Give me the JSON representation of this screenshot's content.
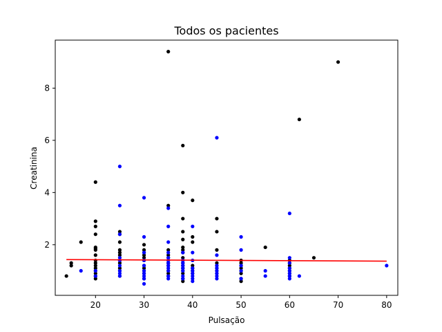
{
  "chart_data": {
    "type": "scatter",
    "title": "Todos os pacientes",
    "xlabel": "Pulsação",
    "ylabel": "Creatinina",
    "xlim": [
      11.7,
      82.3
    ],
    "ylim": [
      0.06,
      9.84
    ],
    "xticks": [
      20,
      30,
      40,
      50,
      60,
      70,
      80
    ],
    "yticks": [
      2,
      4,
      6,
      8
    ],
    "grid": false,
    "legend": "none",
    "series": [
      {
        "color": "#000000",
        "points": [
          [
            14,
            0.8
          ],
          [
            15,
            1.2
          ],
          [
            15,
            1.3
          ],
          [
            17,
            2.1
          ],
          [
            20,
            0.7
          ],
          [
            20,
            0.8
          ],
          [
            20,
            0.9
          ],
          [
            20,
            1.0
          ],
          [
            20,
            1.1
          ],
          [
            20,
            1.2
          ],
          [
            20,
            1.3
          ],
          [
            20,
            1.4
          ],
          [
            20,
            1.6
          ],
          [
            20,
            1.8
          ],
          [
            20,
            1.85
          ],
          [
            20,
            1.9
          ],
          [
            20,
            2.4
          ],
          [
            20,
            2.7
          ],
          [
            20,
            2.9
          ],
          [
            20,
            4.4
          ],
          [
            25,
            0.8
          ],
          [
            25,
            1.0
          ],
          [
            25,
            1.1
          ],
          [
            25,
            1.3
          ],
          [
            25,
            1.4
          ],
          [
            25,
            1.6
          ],
          [
            25,
            1.7
          ],
          [
            25,
            1.8
          ],
          [
            25,
            2.1
          ],
          [
            25,
            2.4
          ],
          [
            25,
            2.5
          ],
          [
            30,
            0.7
          ],
          [
            30,
            0.9
          ],
          [
            30,
            1.0
          ],
          [
            30,
            1.1
          ],
          [
            30,
            1.2
          ],
          [
            30,
            1.4
          ],
          [
            30,
            1.5
          ],
          [
            30,
            1.6
          ],
          [
            30,
            1.7
          ],
          [
            30,
            1.8
          ],
          [
            30,
            2.0
          ],
          [
            35,
            0.8
          ],
          [
            35,
            0.9
          ],
          [
            35,
            1.0
          ],
          [
            35,
            1.2
          ],
          [
            35,
            1.3
          ],
          [
            35,
            1.4
          ],
          [
            35,
            1.5
          ],
          [
            35,
            1.6
          ],
          [
            35,
            1.8
          ],
          [
            35,
            3.5
          ],
          [
            35,
            9.4
          ],
          [
            38,
            0.6
          ],
          [
            38,
            0.7
          ],
          [
            38,
            0.9
          ],
          [
            38,
            1.0
          ],
          [
            38,
            1.1
          ],
          [
            38,
            1.2
          ],
          [
            38,
            1.3
          ],
          [
            38,
            1.4
          ],
          [
            38,
            1.5
          ],
          [
            38,
            1.7
          ],
          [
            38,
            1.8
          ],
          [
            38,
            1.9
          ],
          [
            38,
            2.2
          ],
          [
            38,
            2.5
          ],
          [
            38,
            3.0
          ],
          [
            38,
            4.0
          ],
          [
            38,
            5.8
          ],
          [
            40,
            0.9
          ],
          [
            40,
            1.0
          ],
          [
            40,
            1.1
          ],
          [
            40,
            1.2
          ],
          [
            40,
            2.1
          ],
          [
            40,
            2.3
          ],
          [
            40,
            3.7
          ],
          [
            45,
            0.9
          ],
          [
            45,
            1.0
          ],
          [
            45,
            1.1
          ],
          [
            45,
            1.2
          ],
          [
            45,
            1.3
          ],
          [
            45,
            1.8
          ],
          [
            45,
            2.5
          ],
          [
            45,
            3.0
          ],
          [
            50,
            0.6
          ],
          [
            50,
            0.7
          ],
          [
            50,
            0.9
          ],
          [
            50,
            1.0
          ],
          [
            50,
            1.1
          ],
          [
            50,
            1.2
          ],
          [
            50,
            1.3
          ],
          [
            50,
            1.4
          ],
          [
            55,
            1.9
          ],
          [
            60,
            0.8
          ],
          [
            60,
            0.9
          ],
          [
            60,
            1.0
          ],
          [
            60,
            1.1
          ],
          [
            60,
            1.2
          ],
          [
            60,
            1.3
          ],
          [
            60,
            1.4
          ],
          [
            62,
            6.8
          ],
          [
            65,
            1.5
          ],
          [
            70,
            9.0
          ]
        ]
      },
      {
        "color": "#0000ff",
        "points": [
          [
            17,
            1.0
          ],
          [
            20,
            0.8
          ],
          [
            20,
            1.0
          ],
          [
            25,
            0.8
          ],
          [
            25,
            0.9
          ],
          [
            25,
            1.0
          ],
          [
            25,
            1.2
          ],
          [
            25,
            1.4
          ],
          [
            25,
            1.5
          ],
          [
            25,
            2.4
          ],
          [
            25,
            3.5
          ],
          [
            25,
            5.0
          ],
          [
            30,
            0.5
          ],
          [
            30,
            0.7
          ],
          [
            30,
            0.8
          ],
          [
            30,
            0.9
          ],
          [
            30,
            1.0
          ],
          [
            30,
            1.2
          ],
          [
            30,
            1.4
          ],
          [
            30,
            1.7
          ],
          [
            30,
            2.3
          ],
          [
            30,
            3.8
          ],
          [
            35,
            0.7
          ],
          [
            35,
            0.8
          ],
          [
            35,
            1.0
          ],
          [
            35,
            1.1
          ],
          [
            35,
            1.2
          ],
          [
            35,
            1.3
          ],
          [
            35,
            1.4
          ],
          [
            35,
            1.5
          ],
          [
            35,
            1.7
          ],
          [
            35,
            2.1
          ],
          [
            35,
            2.7
          ],
          [
            35,
            3.4
          ],
          [
            38,
            0.7
          ],
          [
            38,
            0.8
          ],
          [
            38,
            1.0
          ],
          [
            38,
            1.1
          ],
          [
            38,
            1.2
          ],
          [
            38,
            1.3
          ],
          [
            38,
            1.4
          ],
          [
            38,
            1.7
          ],
          [
            40,
            0.6
          ],
          [
            40,
            0.7
          ],
          [
            40,
            0.8
          ],
          [
            40,
            0.9
          ],
          [
            40,
            1.0
          ],
          [
            40,
            1.1
          ],
          [
            40,
            1.4
          ],
          [
            40,
            1.7
          ],
          [
            40,
            2.7
          ],
          [
            45,
            0.7
          ],
          [
            45,
            0.8
          ],
          [
            45,
            0.9
          ],
          [
            45,
            1.0
          ],
          [
            45,
            1.1
          ],
          [
            45,
            1.2
          ],
          [
            45,
            1.6
          ],
          [
            45,
            6.1
          ],
          [
            50,
            0.7
          ],
          [
            50,
            1.0
          ],
          [
            50,
            1.2
          ],
          [
            50,
            1.8
          ],
          [
            50,
            2.3
          ],
          [
            55,
            0.8
          ],
          [
            55,
            1.0
          ],
          [
            60,
            0.7
          ],
          [
            60,
            0.8
          ],
          [
            60,
            0.9
          ],
          [
            60,
            1.0
          ],
          [
            60,
            1.1
          ],
          [
            60,
            1.3
          ],
          [
            60,
            1.5
          ],
          [
            60,
            3.2
          ],
          [
            62,
            0.8
          ],
          [
            80,
            1.2
          ]
        ]
      }
    ],
    "trendline": {
      "color": "#ff0000",
      "x": [
        14,
        80
      ],
      "y": [
        1.43,
        1.37
      ]
    }
  }
}
